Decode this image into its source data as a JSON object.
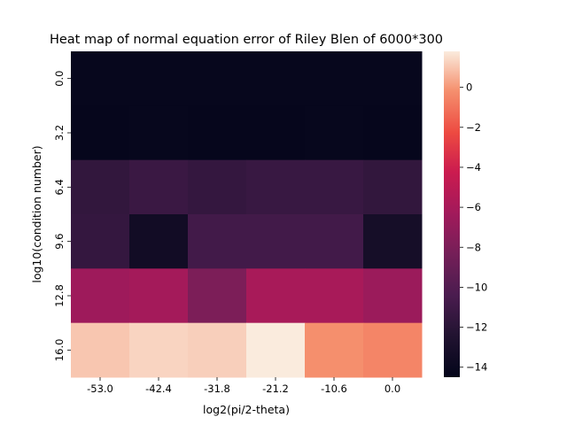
{
  "chart_data": {
    "type": "heatmap",
    "title": "Heat map of normal equation error of Riley Blen of 6000*300",
    "xlabel": "log2(pi/2-theta)",
    "ylabel": "log10(condition number)",
    "x_categories": [
      "-53.0",
      "-42.4",
      "-31.8",
      "-21.2",
      "-10.6",
      "0.0"
    ],
    "y_categories": [
      "0.0",
      "3.2",
      "6.4",
      "9.6",
      "12.8",
      "16.0"
    ],
    "values": [
      [
        -14.2,
        -14.2,
        -14.2,
        -14.2,
        -14.2,
        -14.2
      ],
      [
        -14.3,
        -14.2,
        -14.3,
        -14.3,
        -14.2,
        -14.3
      ],
      [
        -11.6,
        -11.2,
        -11.5,
        -11.3,
        -11.3,
        -11.6
      ],
      [
        -11.5,
        -13.5,
        -10.8,
        -10.8,
        -10.8,
        -13.2
      ],
      [
        -6.5,
        -6.2,
        -8.0,
        -6.0,
        -6.0,
        -6.6
      ],
      [
        1.0,
        1.3,
        1.2,
        1.8,
        -0.2,
        -0.5
      ]
    ],
    "colorbar": {
      "range": [
        -14.5,
        1.8
      ],
      "ticks": [
        "0",
        "−2",
        "−4",
        "−6",
        "−8",
        "−10",
        "−12",
        "−14"
      ],
      "colormap": "rocket"
    }
  }
}
